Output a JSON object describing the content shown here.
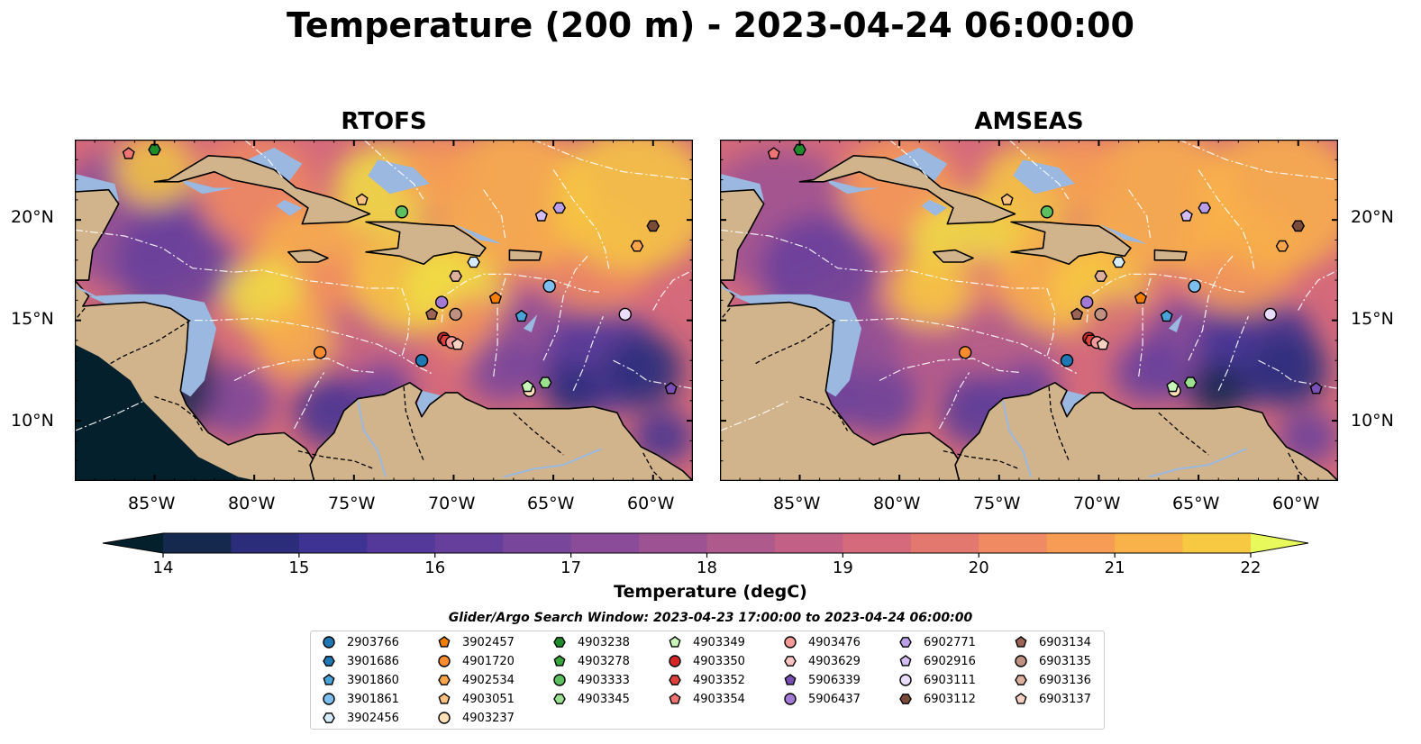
{
  "title": "Temperature (200 m) - 2023-04-24 06:00:00",
  "panels": [
    {
      "title": "RTOFS"
    },
    {
      "title": "AMSEAS"
    }
  ],
  "lat_labels": [
    "20°N",
    "15°N",
    "10°N"
  ],
  "lon_labels": [
    "85°W",
    "80°W",
    "75°W",
    "70°W",
    "65°W",
    "60°W"
  ],
  "map_extent": {
    "lon_min": -89,
    "lon_max": -58,
    "lat_min": 7,
    "lat_max": 24
  },
  "colorbar": {
    "label": "Temperature (degC)",
    "min": 14,
    "max": 22,
    "step": 0.5,
    "ticks": [
      "14",
      "15",
      "16",
      "17",
      "18",
      "19",
      "20",
      "21",
      "22"
    ],
    "extend": "both",
    "colormap": "thermal",
    "under_color": "#04202c",
    "over_color": "#e8fa5b"
  },
  "search_window": "Glider/Argo Search Window: 2023-04-23 17:00:00 to 2023-04-24 06:00:00",
  "legend": [
    {
      "id": "2903766",
      "marker": "circle",
      "color": "#1f77b4"
    },
    {
      "id": "3901686",
      "marker": "hexagon",
      "color": "#1f77b4"
    },
    {
      "id": "3901860",
      "marker": "pentagon",
      "color": "#4aa3d8"
    },
    {
      "id": "3901861",
      "marker": "circle",
      "color": "#7cbfef"
    },
    {
      "id": "3902456",
      "marker": "hexagon",
      "color": "#d6ecfb"
    },
    {
      "id": "3902457",
      "marker": "pentagon",
      "color": "#f57e00"
    },
    {
      "id": "4901720",
      "marker": "circle",
      "color": "#ff8c2e"
    },
    {
      "id": "4902534",
      "marker": "hexagon",
      "color": "#ffa64d"
    },
    {
      "id": "4903051",
      "marker": "pentagon",
      "color": "#ffc080"
    },
    {
      "id": "4903237",
      "marker": "circle",
      "color": "#ffe0b8"
    },
    {
      "id": "4903238",
      "marker": "hexagon",
      "color": "#1e8c2a"
    },
    {
      "id": "4903278",
      "marker": "pentagon",
      "color": "#36a83e"
    },
    {
      "id": "4903333",
      "marker": "circle",
      "color": "#5cc060"
    },
    {
      "id": "4903345",
      "marker": "hexagon",
      "color": "#9ae08e"
    },
    {
      "id": "4903349",
      "marker": "pentagon",
      "color": "#c8f5b8"
    },
    {
      "id": "4903350",
      "marker": "circle",
      "color": "#d62728"
    },
    {
      "id": "4903352",
      "marker": "hexagon",
      "color": "#e0403c"
    },
    {
      "id": "4903354",
      "marker": "pentagon",
      "color": "#ef7575"
    },
    {
      "id": "4903476",
      "marker": "circle",
      "color": "#f59a98"
    },
    {
      "id": "4903629",
      "marker": "hexagon",
      "color": "#fbc4c2"
    },
    {
      "id": "5906339",
      "marker": "pentagon",
      "color": "#7a4fb5"
    },
    {
      "id": "5906437",
      "marker": "circle",
      "color": "#a27ad6"
    },
    {
      "id": "6902771",
      "marker": "hexagon",
      "color": "#bb9ee8"
    },
    {
      "id": "6902916",
      "marker": "pentagon",
      "color": "#d2bdf5"
    },
    {
      "id": "6903111",
      "marker": "circle",
      "color": "#eadcfb"
    },
    {
      "id": "6903112",
      "marker": "hexagon",
      "color": "#7b4b3a"
    },
    {
      "id": "6903134",
      "marker": "pentagon",
      "color": "#9c6454"
    },
    {
      "id": "6903135",
      "marker": "circle",
      "color": "#c09080"
    },
    {
      "id": "6903136",
      "marker": "hexagon",
      "color": "#dcb09c"
    },
    {
      "id": "6903137",
      "marker": "pentagon",
      "color": "#f7d2c2"
    }
  ],
  "floats_on_map": [
    {
      "id": "2903766",
      "lon": -71.6,
      "lat": 13.0
    },
    {
      "id": "3901860",
      "lon": -66.6,
      "lat": 15.2
    },
    {
      "id": "3901861",
      "lon": -65.2,
      "lat": 16.7
    },
    {
      "id": "3902456",
      "lon": -69.0,
      "lat": 17.9
    },
    {
      "id": "3902457",
      "lon": -67.9,
      "lat": 16.1
    },
    {
      "id": "4901720",
      "lon": -76.7,
      "lat": 13.4
    },
    {
      "id": "4902534",
      "lon": -60.8,
      "lat": 18.7
    },
    {
      "id": "4903051",
      "lon": -74.6,
      "lat": 21.0
    },
    {
      "id": "4903237",
      "lon": -66.2,
      "lat": 11.5
    },
    {
      "id": "4903238",
      "lon": -85.0,
      "lat": 23.5
    },
    {
      "id": "4903333",
      "lon": -72.6,
      "lat": 20.4
    },
    {
      "id": "4903345",
      "lon": -65.4,
      "lat": 11.9
    },
    {
      "id": "4903349",
      "lon": -66.3,
      "lat": 11.7
    },
    {
      "id": "4903350",
      "lon": -70.5,
      "lat": 14.1
    },
    {
      "id": "4903352",
      "lon": -70.4,
      "lat": 14.0
    },
    {
      "id": "4903354",
      "lon": -86.3,
      "lat": 23.3
    },
    {
      "id": "4903476",
      "lon": -70.1,
      "lat": 13.9
    },
    {
      "id": "5906339",
      "lon": -59.1,
      "lat": 11.6
    },
    {
      "id": "5906437",
      "lon": -70.6,
      "lat": 15.9
    },
    {
      "id": "6902771",
      "lon": -64.7,
      "lat": 20.6
    },
    {
      "id": "6902916",
      "lon": -65.6,
      "lat": 20.2
    },
    {
      "id": "6903111",
      "lon": -61.4,
      "lat": 15.3
    },
    {
      "id": "6903112",
      "lon": -60.0,
      "lat": 19.7
    },
    {
      "id": "6903134",
      "lon": -71.1,
      "lat": 15.3
    },
    {
      "id": "6903135",
      "lon": -69.9,
      "lat": 15.3
    },
    {
      "id": "6903136",
      "lon": -69.9,
      "lat": 17.2
    },
    {
      "id": "6903137",
      "lon": -69.8,
      "lat": 13.8
    }
  ]
}
